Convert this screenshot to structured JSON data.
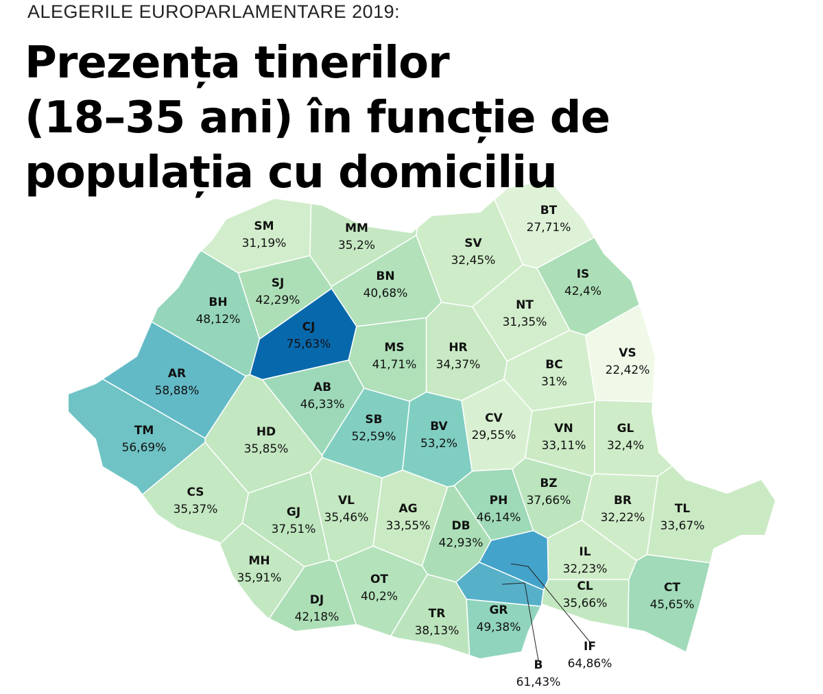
{
  "header": {
    "kicker": "ALEGERILE EUROPARLAMENTARE 2019:",
    "title_lines": [
      "Prezența tinerilor",
      "(18–35 ani) în funcție de",
      "populația cu domiciliu"
    ]
  },
  "counties": [
    {
      "code": "SM",
      "value": 31.19,
      "label": "31,19%"
    },
    {
      "code": "MM",
      "value": 35.2,
      "label": "35,2%"
    },
    {
      "code": "BT",
      "value": 27.71,
      "label": "27,71%"
    },
    {
      "code": "SV",
      "value": 32.45,
      "label": "32,45%"
    },
    {
      "code": "IS",
      "value": 42.4,
      "label": "42,4%"
    },
    {
      "code": "SJ",
      "value": 42.29,
      "label": "42,29%"
    },
    {
      "code": "BN",
      "value": 40.68,
      "label": "40,68%"
    },
    {
      "code": "BH",
      "value": 48.12,
      "label": "48,12%"
    },
    {
      "code": "NT",
      "value": 31.35,
      "label": "31,35%"
    },
    {
      "code": "CJ",
      "value": 75.63,
      "label": "75,63%"
    },
    {
      "code": "MS",
      "value": 41.71,
      "label": "41,71%"
    },
    {
      "code": "HR",
      "value": 34.37,
      "label": "34,37%"
    },
    {
      "code": "BC",
      "value": 31,
      "label": "31%"
    },
    {
      "code": "VS",
      "value": 22.42,
      "label": "22,42%"
    },
    {
      "code": "AR",
      "value": 58.88,
      "label": "58,88%"
    },
    {
      "code": "AB",
      "value": 46.33,
      "label": "46,33%"
    },
    {
      "code": "SB",
      "value": 52.59,
      "label": "52,59%"
    },
    {
      "code": "BV",
      "value": 53.2,
      "label": "53,2%"
    },
    {
      "code": "CV",
      "value": 29.55,
      "label": "29,55%"
    },
    {
      "code": "VN",
      "value": 33.11,
      "label": "33,11%"
    },
    {
      "code": "GL",
      "value": 32.4,
      "label": "32,4%"
    },
    {
      "code": "TM",
      "value": 56.69,
      "label": "56,69%"
    },
    {
      "code": "HD",
      "value": 35.85,
      "label": "35,85%"
    },
    {
      "code": "CS",
      "value": 35.37,
      "label": "35,37%"
    },
    {
      "code": "VL",
      "value": 35.46,
      "label": "35,46%"
    },
    {
      "code": "AG",
      "value": 33.55,
      "label": "33,55%"
    },
    {
      "code": "GJ",
      "value": 37.51,
      "label": "37,51%"
    },
    {
      "code": "PH",
      "value": 46.14,
      "label": "46,14%"
    },
    {
      "code": "BZ",
      "value": 37.66,
      "label": "37,66%"
    },
    {
      "code": "BR",
      "value": 32.22,
      "label": "32,22%"
    },
    {
      "code": "TL",
      "value": 33.67,
      "label": "33,67%"
    },
    {
      "code": "DB",
      "value": 42.93,
      "label": "42,93%"
    },
    {
      "code": "IL",
      "value": 32.23,
      "label": "32,23%"
    },
    {
      "code": "MH",
      "value": 35.91,
      "label": "35,91%"
    },
    {
      "code": "OT",
      "value": 40.2,
      "label": "40,2%"
    },
    {
      "code": "CL",
      "value": 35.66,
      "label": "35,66%"
    },
    {
      "code": "CT",
      "value": 45.65,
      "label": "45,65%"
    },
    {
      "code": "DJ",
      "value": 42.18,
      "label": "42,18%"
    },
    {
      "code": "TR",
      "value": 38.13,
      "label": "38,13%"
    },
    {
      "code": "GR",
      "value": 49.38,
      "label": "49,38%"
    },
    {
      "code": "IF",
      "value": 64.86,
      "label": "64,86%"
    },
    {
      "code": "B",
      "value": 61.43,
      "label": "61,43%"
    }
  ]
}
